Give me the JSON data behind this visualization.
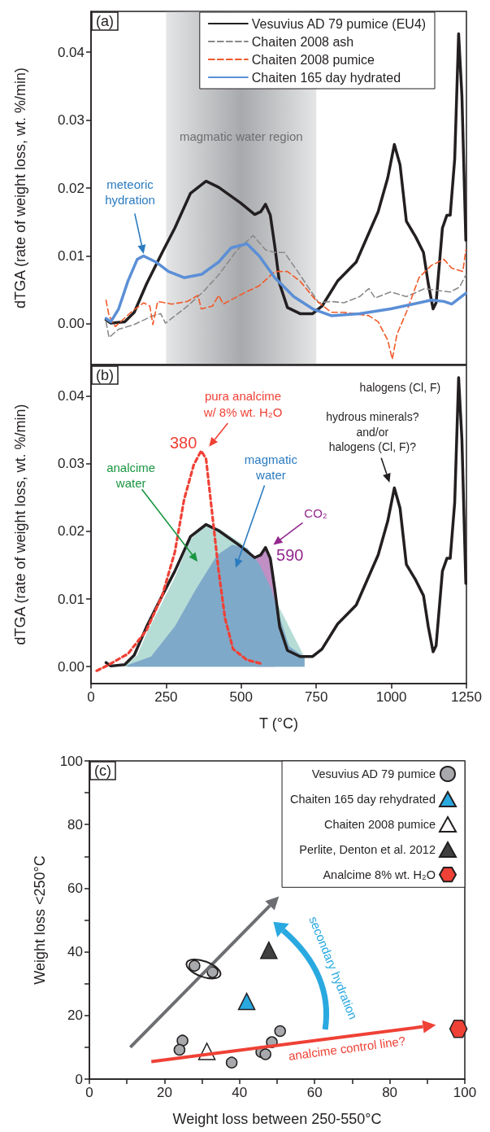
{
  "chart_data": [
    {
      "type": "line",
      "title": "(a)",
      "ylabel": "dTGA (rate of weight loss, wt. %/min)",
      "xlim": [
        0,
        1250
      ],
      "ylim": [
        -0.006,
        0.046
      ],
      "yticks": [
        {
          "value": 0,
          "label": "0.00"
        },
        {
          "value": 0.01,
          "label": "0.01"
        },
        {
          "value": 0.02,
          "label": "0.02"
        },
        {
          "value": 0.03,
          "label": "0.03"
        },
        {
          "value": 0.04,
          "label": "0.04"
        }
      ],
      "tick_labels": "y",
      "legend": "top right",
      "marker": "none",
      "bands": [
        {
          "axis": "x",
          "from": 250,
          "to": 750,
          "label": "magmatic water region",
          "color": "#a7a9ac"
        }
      ],
      "annotations": [
        "meteoric\nhydration"
      ],
      "series": [
        {
          "name": "Vesuvius AD 79 pumice (EU4)",
          "color": "#231f20",
          "line_style": "solid",
          "x": [
            50,
            66,
            112,
            144,
            185,
            237,
            279,
            331,
            383,
            425,
            498,
            545,
            565,
            581,
            597,
            612,
            628,
            654,
            696,
            738,
            769,
            821,
            883,
            956,
            988,
            1010,
            1029,
            1050,
            1081,
            1107,
            1123,
            1139,
            1149,
            1170,
            1185,
            1196,
            1211,
            1224,
            1235,
            1248
          ],
          "values": [
            0.0006,
            0.0001,
            0.0003,
            0.0017,
            0.0059,
            0.0105,
            0.0141,
            0.0192,
            0.021,
            0.0201,
            0.0178,
            0.0161,
            0.0165,
            0.0176,
            0.016,
            0.0114,
            0.0059,
            0.0024,
            0.0015,
            0.0015,
            0.0026,
            0.0063,
            0.0091,
            0.0165,
            0.0215,
            0.0264,
            0.0234,
            0.0151,
            0.0128,
            0.0105,
            0.0059,
            0.0022,
            0.0031,
            0.0141,
            0.016,
            0.016,
            0.0243,
            0.0427,
            0.0335,
            0.0123
          ]
        },
        {
          "name": "Chaiten 2008 ash",
          "color": "#8a8a8a",
          "line_style": "dashed",
          "x": [
            50,
            60,
            92,
            144,
            206,
            232,
            248,
            321,
            373,
            425,
            487,
            540,
            581,
            612,
            644,
            696,
            758,
            800,
            842,
            894,
            925,
            946,
            998,
            1050,
            1112,
            1154,
            1196,
            1227,
            1248
          ],
          "values": [
            0.0003,
            -0.002,
            -0.0008,
            -0.0001,
            0.0012,
            0.0015,
            0.0001,
            0.0026,
            0.0047,
            0.0072,
            0.0109,
            0.013,
            0.0109,
            0.0105,
            0.0105,
            0.0072,
            0.0031,
            0.0033,
            0.0031,
            0.004,
            0.0052,
            0.0038,
            0.0047,
            0.004,
            0.0052,
            0.0049,
            0.0047,
            0.0054,
            0.0072
          ]
        },
        {
          "name": "Chaiten 2008 pumice",
          "color": "#f15a29",
          "line_style": "dashed",
          "x": [
            50,
            60,
            81,
            133,
            175,
            196,
            206,
            222,
            269,
            321,
            356,
            367,
            404,
            425,
            440,
            508,
            560,
            612,
            654,
            696,
            748,
            800,
            842,
            925,
            956,
            988,
            1003,
            1019,
            1050,
            1092,
            1133,
            1175,
            1201,
            1238,
            1248
          ],
          "values": [
            0.0035,
            0.0012,
            -0.0004,
            0.0017,
            0.0031,
            0.0026,
            -0.0001,
            0.0033,
            0.0029,
            0.0033,
            0.0042,
            0.0022,
            0.0026,
            0.0042,
            0.0029,
            0.0045,
            0.0056,
            0.0077,
            0.0077,
            0.0063,
            0.0035,
            0.0017,
            0.0017,
            0.0012,
            0.0003,
            -0.0024,
            -0.0052,
            -0.0015,
            0.0017,
            0.0068,
            0.0086,
            0.0095,
            0.0082,
            0.0077,
            0.0109
          ]
        },
        {
          "name": "Chaiten 165 day hydrated",
          "color": "#5b8fd6",
          "line_style": "solid",
          "x": [
            50,
            66,
            92,
            123,
            154,
            175,
            216,
            258,
            310,
            369,
            425,
            467,
            519,
            560,
            612,
            675,
            738,
            800,
            894,
            998,
            1071,
            1133,
            1175,
            1201,
            1248
          ],
          "values": [
            0.0008,
            0.0003,
            0.0022,
            0.0063,
            0.0095,
            0.01,
            0.0091,
            0.0077,
            0.0068,
            0.0073,
            0.0091,
            0.0112,
            0.0118,
            0.01,
            0.0068,
            0.004,
            0.0022,
            0.0012,
            0.0015,
            0.0022,
            0.0029,
            0.0035,
            0.0033,
            0.0029,
            0.0045
          ]
        }
      ]
    },
    {
      "type": "line",
      "title": "(b)",
      "ylabel": "dTGA (rate of weight loss, wt. %/min)",
      "xlabel": "T (°C)",
      "xlim": [
        0,
        1250
      ],
      "xticks": [
        0,
        250,
        500,
        750,
        1000,
        1250
      ],
      "ylim": [
        -0.0025,
        0.0445
      ],
      "yticks": [
        {
          "value": 0,
          "label": "0.00"
        },
        {
          "value": 0.01,
          "label": "0.01"
        },
        {
          "value": 0.02,
          "label": "0.02"
        },
        {
          "value": 0.03,
          "label": "0.03"
        },
        {
          "value": 0.04,
          "label": "0.04"
        }
      ],
      "marker": "none",
      "annotations": [
        "pura analcime\nw/ 8% wt. H₂O",
        {
          "text": "380",
          "x": 367,
          "y": 0.0319
        },
        "analcime\nwater",
        "magmatic\nwater",
        "CO₂",
        {
          "text": "590",
          "x": 581,
          "y": 0.0176
        },
        "hydrous minerals?\nand/or\nhalogens (Cl, F)?",
        {
          "text": "halogens (Cl, F)",
          "x": 1224,
          "y": 0.0427
        }
      ],
      "series": [
        {
          "type": "area",
          "color": "#b6dcd6",
          "x": [
            112,
            154,
            185,
            237,
            279,
            331,
            383,
            425,
            498,
            550,
            581,
            618,
            711
          ],
          "values": [
            0.0001,
            0.0017,
            0.0049,
            0.0095,
            0.0132,
            0.0188,
            0.0211,
            0.0204,
            0.0183,
            0.016,
            0.0176,
            0.0095,
            0.0014
          ]
        },
        {
          "type": "area",
          "color": "#c08fc4",
          "x": [
            550,
            565,
            581,
            597,
            612
          ],
          "values": [
            0.016,
            0.0165,
            0.0176,
            0.0158,
            0.011
          ]
        },
        {
          "type": "area",
          "color": "#7fa9c9",
          "x": [
            120,
            200,
            280,
            350,
            420,
            470,
            520,
            560,
            600,
            630,
            660,
            711
          ],
          "values": [
            0.0002,
            0.0015,
            0.006,
            0.0115,
            0.0165,
            0.018,
            0.0175,
            0.0152,
            0.0115,
            0.007,
            0.003,
            0.0014
          ]
        },
        {
          "type": "line",
          "color": "#231f20",
          "line_style": "solid",
          "x": [
            50,
            66,
            112,
            144,
            185,
            237,
            279,
            331,
            383,
            425,
            498,
            545,
            565,
            581,
            597,
            612,
            628,
            654,
            696,
            738,
            769,
            821,
            883,
            956,
            988,
            1010,
            1029,
            1050,
            1081,
            1107,
            1123,
            1139,
            1149,
            1170,
            1185,
            1196,
            1211,
            1224,
            1235,
            1248
          ],
          "values": [
            0.0006,
            0.0001,
            0.0003,
            0.0017,
            0.0059,
            0.0105,
            0.0141,
            0.0192,
            0.021,
            0.0201,
            0.0178,
            0.0161,
            0.0165,
            0.0176,
            0.016,
            0.0114,
            0.0059,
            0.0024,
            0.0015,
            0.0015,
            0.0026,
            0.0063,
            0.0091,
            0.0165,
            0.0215,
            0.0264,
            0.0234,
            0.0151,
            0.0128,
            0.0105,
            0.0059,
            0.0022,
            0.0031,
            0.0141,
            0.016,
            0.016,
            0.0243,
            0.0427,
            0.0335,
            0.0123
          ]
        },
        {
          "type": "line",
          "color": "#ef4136",
          "line_style": "dotted",
          "x": [
            19,
            60,
            123,
            185,
            237,
            279,
            310,
            342,
            367,
            383,
            404,
            425,
            446,
            473,
            519,
            571
          ],
          "values": [
            -0.0006,
            0.0003,
            0.0019,
            0.0054,
            0.0105,
            0.0169,
            0.0247,
            0.0298,
            0.0319,
            0.0307,
            0.0224,
            0.0141,
            0.0072,
            0.0026,
            0.001,
            0.0004
          ]
        }
      ]
    },
    {
      "type": "scatter",
      "title": "(c)",
      "xlabel": "Weight loss between 250-550°C",
      "ylabel": "Weight loss <250°C",
      "xlim": [
        0,
        100
      ],
      "ylim": [
        0,
        100
      ],
      "xticks": [
        0,
        {
          "value": 10,
          "label": null
        },
        20,
        {
          "value": 30,
          "label": null
        },
        40,
        {
          "value": 50,
          "label": null
        },
        60,
        {
          "value": 70,
          "label": null
        },
        80,
        {
          "value": 90,
          "label": null
        },
        100
      ],
      "yticks": [
        0,
        {
          "value": 10,
          "label": null
        },
        20,
        {
          "value": 30,
          "label": null
        },
        40,
        {
          "value": 50,
          "label": null
        },
        60,
        {
          "value": 70,
          "label": null
        },
        80,
        {
          "value": 90,
          "label": null
        },
        100
      ],
      "legend": "top right",
      "annotations": [
        "secondary hydration",
        "analcime control line?"
      ],
      "series": [
        {
          "name": "Vesuvius AD 79 pumice",
          "color": "#a7a9ac",
          "marker": "circle",
          "x": [
            28,
            32.8,
            24.8,
            24,
            37.9,
            45.8,
            46.9,
            48.6,
            50.8
          ],
          "values": [
            35.6,
            33.6,
            12.1,
            9.2,
            5.2,
            8.5,
            7.8,
            11.6,
            15.1
          ]
        },
        {
          "name": "Chaiten 165 day rehydrated",
          "color": "#29a9e0",
          "marker": "triangle",
          "x": [
            41.9
          ],
          "values": [
            24.4
          ]
        },
        {
          "name": "Chaiten 2008 pumice",
          "color": "#ffffff",
          "marker": "triangle",
          "x": [
            31.3
          ],
          "values": [
            8.7
          ]
        },
        {
          "name": "Perlite, Denton et al. 2012",
          "color": "#404041",
          "marker": "triangle",
          "x": [
            47.8
          ],
          "values": [
            40.5
          ]
        },
        {
          "name": "Analcime 8% wt. H₂O",
          "color": "#ef4136",
          "x": [
            98.3
          ],
          "values": [
            15.8
          ]
        }
      ]
    }
  ]
}
